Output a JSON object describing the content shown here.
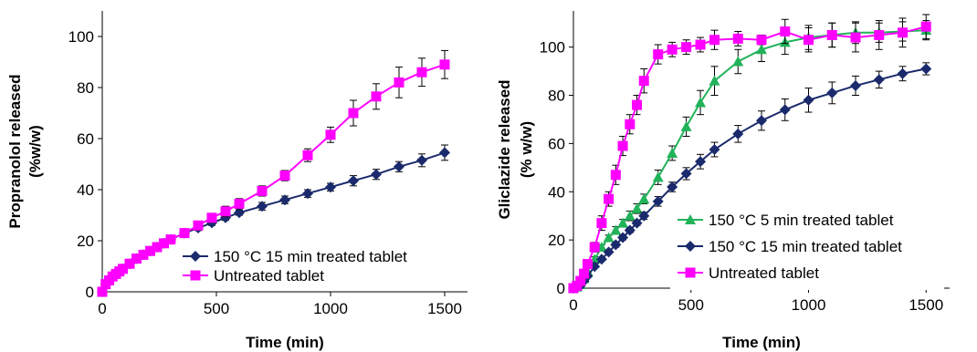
{
  "chart_data": [
    {
      "type": "line",
      "title": "",
      "xlabel": "Time (min)",
      "ylabel_line1": "Propranolol released",
      "ylabel_line2": "(%w/w)",
      "xlim": [
        0,
        1600
      ],
      "ylim": [
        0,
        110
      ],
      "xticks": [
        0,
        500,
        1000,
        1500
      ],
      "yticks": [
        0,
        20,
        40,
        60,
        80,
        100
      ],
      "grid": false,
      "legend_position": "bottom-right",
      "series": [
        {
          "name": "150 °C 15 min treated tablet",
          "color": "#1a2a6c",
          "marker": "diamond",
          "x": [
            0,
            15,
            30,
            45,
            60,
            75,
            90,
            120,
            150,
            180,
            210,
            240,
            270,
            300,
            360,
            420,
            480,
            540,
            600,
            700,
            800,
            900,
            1000,
            1100,
            1200,
            1300,
            1400,
            1500
          ],
          "y": [
            0,
            3,
            4.5,
            6,
            7,
            8,
            9,
            11,
            13,
            14.5,
            16,
            17.5,
            19,
            20.5,
            23,
            25,
            27,
            29,
            31,
            33.5,
            36,
            38.5,
            41,
            43.5,
            46,
            49,
            51.5,
            54.5
          ],
          "err": [
            0,
            0,
            0,
            0,
            0,
            0,
            0,
            0,
            0,
            0,
            0,
            0,
            0,
            0,
            1,
            1,
            1,
            1,
            1,
            1.5,
            1.5,
            1.5,
            1.5,
            2,
            2,
            2,
            2.5,
            3
          ]
        },
        {
          "name": "Untreated tablet",
          "color": "#ff00ff",
          "marker": "square",
          "x": [
            0,
            15,
            30,
            45,
            60,
            75,
            90,
            120,
            150,
            180,
            210,
            240,
            270,
            300,
            360,
            420,
            480,
            540,
            600,
            700,
            800,
            900,
            1000,
            1100,
            1200,
            1300,
            1400,
            1500
          ],
          "y": [
            0,
            3,
            4.5,
            6,
            7,
            8,
            9,
            11,
            13,
            14.5,
            16,
            17.5,
            19,
            20.5,
            23,
            26,
            29,
            31.5,
            34.5,
            39.5,
            45.5,
            53.5,
            61.5,
            70,
            76.5,
            82,
            86,
            89
          ],
          "err": [
            0,
            0,
            0,
            0,
            0,
            0,
            0,
            0,
            0,
            0,
            0,
            0,
            0,
            0,
            1,
            1.5,
            1.5,
            2,
            2,
            2,
            2,
            2.5,
            3,
            5,
            5,
            6,
            5.5,
            5.5
          ]
        }
      ]
    },
    {
      "type": "line",
      "title": "",
      "xlabel": "Time (min)",
      "ylabel_line1": "Gliclazide released",
      "ylabel_line2": "(% w/w)",
      "xlim": [
        0,
        1600
      ],
      "ylim": [
        0,
        115
      ],
      "xticks": [
        0,
        500,
        1000,
        1500
      ],
      "yticks": [
        0,
        20,
        40,
        60,
        80,
        100
      ],
      "grid": false,
      "legend_position": "bottom-right",
      "series": [
        {
          "name": "150 °C 5 min treated tablet",
          "color": "#22b35a",
          "marker": "triangle",
          "x": [
            0,
            15,
            30,
            45,
            60,
            90,
            120,
            150,
            180,
            210,
            240,
            270,
            300,
            360,
            420,
            480,
            540,
            600,
            700,
            800,
            900,
            1000,
            1100,
            1200,
            1300,
            1400,
            1500
          ],
          "y": [
            0,
            0.5,
            1.5,
            4,
            7,
            12,
            17,
            21,
            24,
            27,
            30,
            33,
            37,
            46,
            56,
            67,
            77,
            86,
            94,
            99,
            102,
            104,
            105,
            106,
            106,
            106.5,
            107
          ],
          "err": [
            0,
            0,
            0,
            0,
            0,
            1,
            1,
            1,
            1.5,
            1.5,
            2,
            2,
            2,
            3,
            3,
            4,
            5,
            6,
            5,
            5,
            5,
            5,
            5,
            4.5,
            4,
            4,
            4
          ]
        },
        {
          "name": "150 °C 15 min treated tablet",
          "color": "#1a2a6c",
          "marker": "diamond",
          "x": [
            0,
            15,
            30,
            45,
            60,
            90,
            120,
            150,
            180,
            210,
            240,
            270,
            300,
            360,
            420,
            480,
            540,
            600,
            700,
            800,
            900,
            1000,
            1100,
            1200,
            1300,
            1400,
            1500
          ],
          "y": [
            0,
            0.5,
            1,
            3,
            5,
            9,
            12,
            15,
            18,
            21,
            24,
            27,
            30,
            36,
            42,
            47.5,
            52.5,
            57.5,
            64,
            69.5,
            74,
            78,
            81,
            84,
            86.5,
            89,
            91
          ],
          "err": [
            0,
            0,
            0,
            0,
            0,
            0.5,
            0.5,
            0.5,
            1,
            1,
            1,
            1,
            1.5,
            2,
            2,
            2.5,
            3,
            3,
            3.5,
            4,
            4.5,
            5,
            4.5,
            4,
            3.5,
            3,
            2.5
          ]
        },
        {
          "name": "Untreated tablet",
          "color": "#ff00ff",
          "marker": "square",
          "x": [
            0,
            15,
            30,
            45,
            60,
            90,
            120,
            150,
            180,
            210,
            240,
            270,
            300,
            360,
            420,
            480,
            540,
            600,
            700,
            800,
            900,
            1000,
            1100,
            1200,
            1300,
            1400,
            1500
          ],
          "y": [
            0,
            1,
            3,
            6,
            10,
            17,
            27,
            37,
            47,
            59,
            68,
            76,
            86,
            97,
            99,
            100,
            101,
            103,
            103.5,
            103,
            106.5,
            103,
            105,
            104,
            105,
            106,
            108.5
          ],
          "err": [
            0,
            0,
            0,
            0.5,
            1,
            2,
            3,
            3,
            4,
            4,
            4,
            4,
            5,
            4,
            3,
            3,
            3,
            4,
            3,
            2,
            5,
            5,
            5,
            6,
            6,
            6,
            5
          ]
        }
      ]
    }
  ]
}
